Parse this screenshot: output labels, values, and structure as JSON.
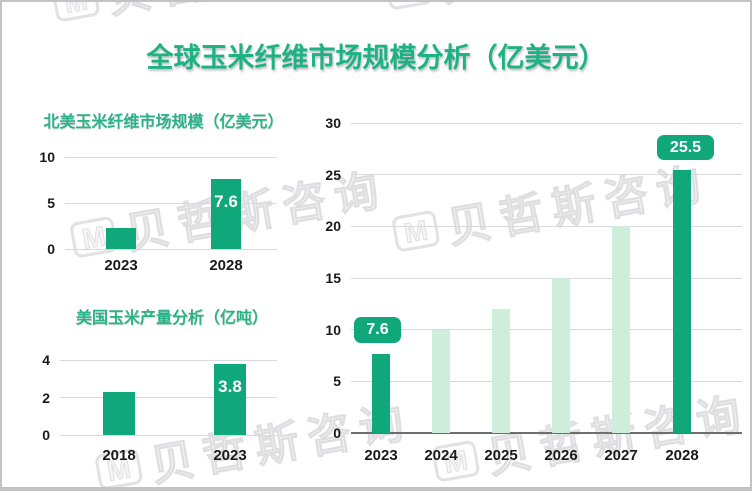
{
  "page": {
    "title": "全球玉米纤维市场规模分析（亿美元）"
  },
  "watermark": {
    "logo": "M",
    "text": "贝哲斯咨询"
  },
  "colors": {
    "primary_green": "#10a77b",
    "light_green": "#cfeddb",
    "title_green": "#1db283",
    "subtitle_green": "#2bb286",
    "gridline": "#d9d9d9",
    "axis": "#6e6e70",
    "tick_text": "#1a1a1a"
  },
  "chart_data": [
    {
      "id": "north-america-market",
      "type": "bar",
      "title": "北美玉米纤维市场规模（亿美元）",
      "categories": [
        "2023",
        "2028"
      ],
      "values": [
        2.3,
        7.6
      ],
      "bar_labels": [
        "",
        "7.6"
      ],
      "ylim": [
        0,
        10
      ],
      "yticks": [
        0,
        5,
        10
      ],
      "grid": true,
      "legend": "none"
    },
    {
      "id": "us-corn-production",
      "type": "bar",
      "title": "美国玉米产量分析（亿吨）",
      "categories": [
        "2018",
        "2023"
      ],
      "values": [
        2.3,
        3.8
      ],
      "bar_labels": [
        "",
        "3.8"
      ],
      "ylim": [
        0,
        4
      ],
      "yticks": [
        0,
        2,
        4
      ],
      "grid": true,
      "legend": "none"
    },
    {
      "id": "global-market-forecast",
      "type": "bar",
      "title": "",
      "categories": [
        "2023",
        "2024",
        "2025",
        "2026",
        "2027",
        "2028"
      ],
      "values": [
        7.6,
        10,
        12,
        15,
        20,
        25.5
      ],
      "emphasis": [
        true,
        false,
        false,
        false,
        false,
        true
      ],
      "callouts": [
        {
          "category": "2023",
          "text": "7.6"
        },
        {
          "category": "2028",
          "text": "25.5"
        }
      ],
      "ylim": [
        0,
        30
      ],
      "yticks": [
        0,
        5,
        10,
        15,
        20,
        25,
        30
      ],
      "grid": true,
      "legend": "none"
    }
  ]
}
